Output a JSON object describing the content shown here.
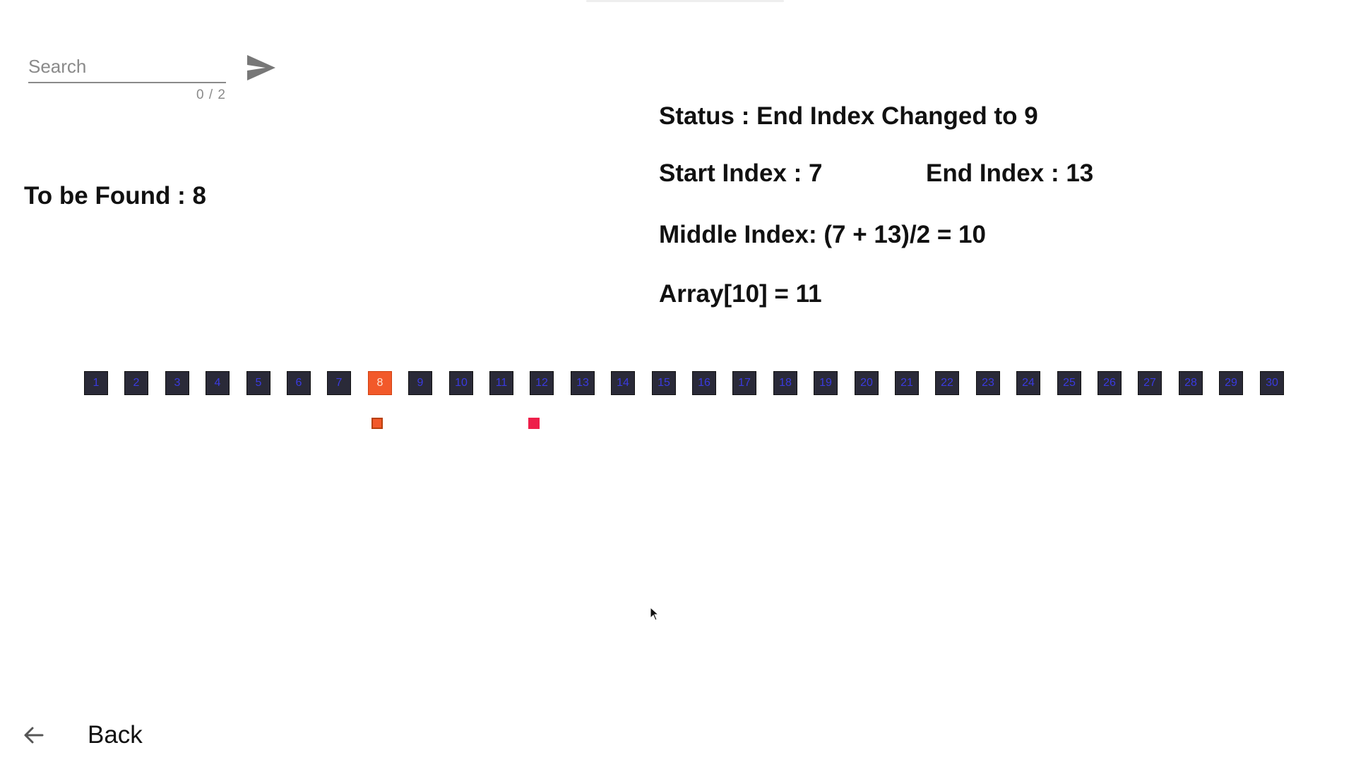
{
  "search": {
    "placeholder": "Search",
    "value": "",
    "counter": "0 / 2"
  },
  "to_be_found": "To be Found : 8",
  "status": "Status : End Index Changed to 9",
  "start_index": "Start Index : 7",
  "end_index": "End Index : 13",
  "middle_index": "Middle Index: (7 + 13)/2 = 10",
  "array_value": "Array[10] = 11",
  "array": {
    "values": [
      "1",
      "2",
      "3",
      "4",
      "5",
      "6",
      "7",
      "8",
      "9",
      "10",
      "11",
      "12",
      "13",
      "14",
      "15",
      "16",
      "17",
      "18",
      "19",
      "20",
      "21",
      "22",
      "23",
      "24",
      "25",
      "26",
      "27",
      "28",
      "29",
      "30"
    ],
    "highlighted_value": "8",
    "cell_color": "#2a2a38",
    "highlight_color": "#f2592a",
    "label_color": "#3a3ae0"
  },
  "markers": {
    "start_color": "#f2592a",
    "middle_color": "#ee1f4a"
  },
  "icons": {
    "send": "send-icon",
    "back": "arrow-left-icon"
  },
  "back": {
    "label": "Back"
  }
}
